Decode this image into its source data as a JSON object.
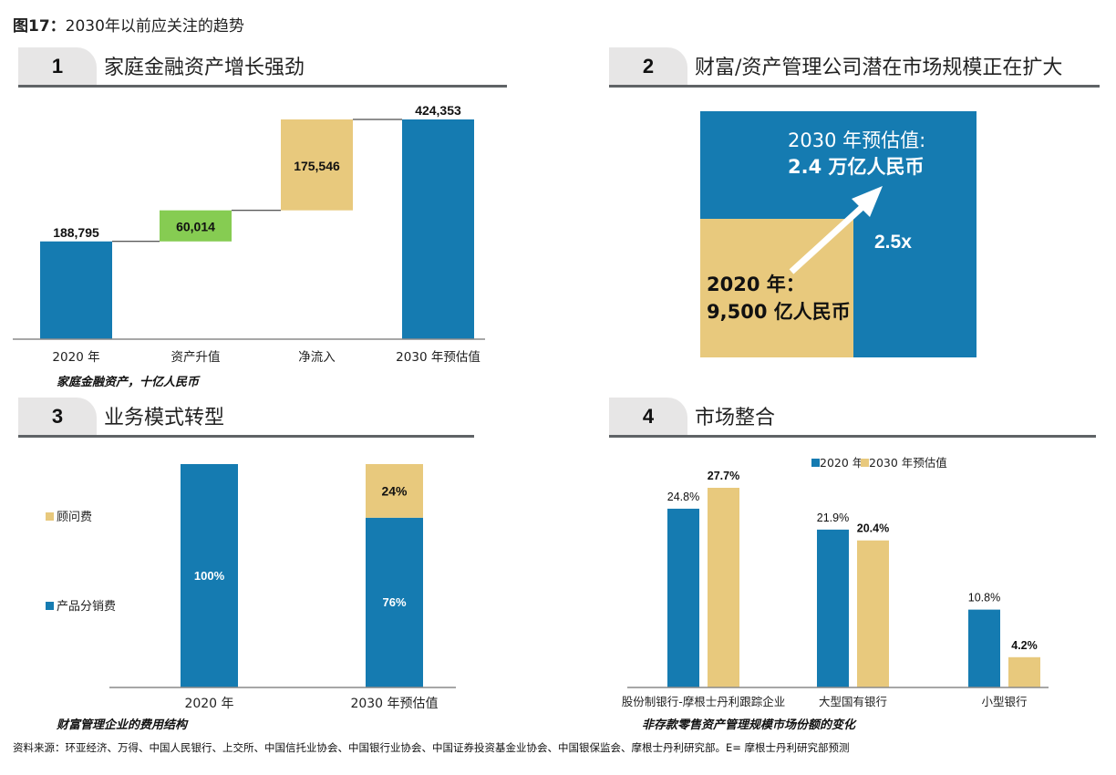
{
  "figure": {
    "label": "图17：",
    "title": "2030年以前应关注的趋势"
  },
  "colors": {
    "blue": "#157bb1",
    "gold": "#e8c97d",
    "green": "#86cc52",
    "axis": "#8a8a8a",
    "tab": "#e7e6e6",
    "rule": "#5f6366"
  },
  "panels": [
    {
      "number": "1",
      "title": "家庭金融资产增长强劲"
    },
    {
      "number": "2",
      "title": "财富/资产管理公司潜在市场规模正在扩大"
    },
    {
      "number": "3",
      "title": "业务模式转型"
    },
    {
      "number": "4",
      "title": "市场整合"
    }
  ],
  "chart_data": [
    {
      "type": "bar",
      "subtype": "waterfall",
      "title": "家庭金融资产增长强劲",
      "caption": "家庭金融资产，十亿人民币",
      "categories": [
        "2020 年",
        "资产升值",
        "净流入",
        "2030 年预估值"
      ],
      "values": [
        188795,
        60014,
        175546,
        424353
      ],
      "labels": [
        "188,795",
        "60,014",
        "175,546",
        "424,353"
      ],
      "kinds": [
        "total",
        "increase",
        "increase",
        "total"
      ],
      "bar_colors": [
        "blue",
        "green",
        "gold",
        "blue"
      ],
      "ylim": [
        0,
        424353
      ],
      "grid": false
    },
    {
      "type": "area",
      "subtype": "nested-square",
      "title": "财富/资产管理公司潜在市场规模正在扩大",
      "outer": {
        "label_line1": "2030 年预估值:",
        "label_line2": "2.4 万亿人民币",
        "value_cny_trillion": 2.4
      },
      "inner": {
        "label_line1": "2020 年：",
        "label_line2": "9,500 亿人民币",
        "value_cny_trillion": 0.95
      },
      "multiplier_label": "2.5x",
      "arrow": "growth-arrow"
    },
    {
      "type": "bar",
      "subtype": "stacked-100",
      "title": "业务模式转型",
      "caption": "财富管理企业的费用结构",
      "categories": [
        "2020 年",
        "2030 年预估值"
      ],
      "series": [
        {
          "name": "产品分销费",
          "color": "blue",
          "values": [
            100,
            76
          ],
          "labels": [
            "100%",
            "76%"
          ]
        },
        {
          "name": "顾问费",
          "color": "gold",
          "values": [
            0,
            24
          ],
          "labels": [
            "",
            "24%"
          ]
        }
      ],
      "legend": [
        "顾问费",
        "产品分销费"
      ],
      "legend_position": "left",
      "ylim": [
        0,
        100
      ]
    },
    {
      "type": "bar",
      "subtype": "grouped",
      "title": "市场整合",
      "caption": "非存款零售资产管理规模市场份额的变化",
      "categories": [
        "股份制银行-摩根士丹利跟踪企业",
        "大型国有银行",
        "小型银行"
      ],
      "series": [
        {
          "name": "2020 年",
          "color": "blue",
          "values": [
            24.8,
            21.9,
            10.8
          ],
          "labels": [
            "24.8%",
            "21.9%",
            "10.8%"
          ]
        },
        {
          "name": "2030 年预估值",
          "color": "gold",
          "values": [
            27.7,
            20.4,
            4.2
          ],
          "labels": [
            "27.7%",
            "20.4%",
            "4.2%"
          ]
        }
      ],
      "legend_position": "top",
      "ylim": [
        0,
        30
      ]
    }
  ],
  "source": "资料来源：环亚经济、万得、中国人民银行、上交所、中国信托业协会、中国银行业协会、中国证券投资基金业协会、中国银保监会、摩根士丹利研究部。E= 摩根士丹利研究部预测"
}
